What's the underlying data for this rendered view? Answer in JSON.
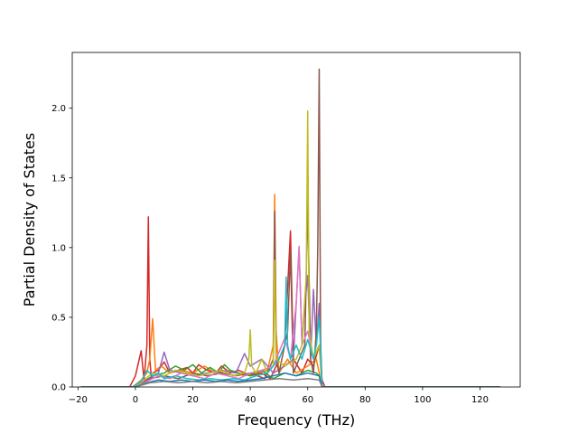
{
  "chart_data": {
    "type": "line",
    "title": "",
    "xlabel": "Frequency (THz)",
    "ylabel": "Partial Density of States",
    "xlim": [
      -22,
      134
    ],
    "ylim": [
      0,
      2.4
    ],
    "xticks": [
      -20,
      0,
      20,
      40,
      60,
      80,
      100,
      120
    ],
    "xtick_labels": [
      "−20",
      "0",
      "20",
      "40",
      "60",
      "80",
      "100",
      "120"
    ],
    "yticks": [
      0.0,
      0.5,
      1.0,
      1.5,
      2.0
    ],
    "ytick_labels": [
      "0.0",
      "0.5",
      "1.0",
      "1.5",
      "2.0"
    ],
    "grid": false,
    "legend": "none",
    "series": [
      {
        "color": "#d62728",
        "x": [
          -19,
          -2,
          0,
          2,
          3,
          4,
          4.5,
          5,
          5.5,
          6,
          8,
          10,
          12,
          15,
          18,
          20,
          22,
          25,
          28,
          30,
          33,
          36,
          40,
          44,
          47,
          49,
          52,
          54,
          55,
          58,
          60,
          62,
          64,
          65,
          66,
          70,
          127
        ],
        "y": [
          0,
          0,
          0.08,
          0.26,
          0.05,
          0.3,
          1.22,
          0.2,
          0.08,
          0.1,
          0.12,
          0.18,
          0.1,
          0.12,
          0.14,
          0.1,
          0.16,
          0.12,
          0.1,
          0.15,
          0.1,
          0.12,
          0.08,
          0.1,
          0.06,
          0.15,
          0.3,
          1.12,
          0.2,
          0.1,
          0.2,
          0.15,
          0.3,
          0.05,
          0,
          0,
          0
        ]
      },
      {
        "color": "#ff7f0e",
        "x": [
          -19,
          -1,
          2,
          4,
          5,
          6,
          6.5,
          7,
          9,
          12,
          16,
          20,
          24,
          28,
          33,
          38,
          42,
          46,
          48,
          48.5,
          49,
          50,
          53,
          56,
          60,
          63,
          64,
          65,
          127
        ],
        "y": [
          0,
          0,
          0.05,
          0.1,
          0.2,
          0.49,
          0.3,
          0.12,
          0.15,
          0.1,
          0.12,
          0.1,
          0.15,
          0.1,
          0.12,
          0.08,
          0.1,
          0.12,
          0.3,
          1.38,
          0.4,
          0.1,
          0.2,
          0.1,
          0.15,
          0.2,
          0.1,
          0,
          0
        ]
      },
      {
        "color": "#2ca02c",
        "x": [
          -19,
          0,
          3,
          6,
          10,
          14,
          17,
          20,
          23,
          26,
          29,
          31,
          33,
          36,
          40,
          44,
          48,
          52,
          56,
          60,
          63,
          64,
          65,
          127
        ],
        "y": [
          0,
          0,
          0.04,
          0.08,
          0.1,
          0.15,
          0.12,
          0.16,
          0.1,
          0.14,
          0.1,
          0.16,
          0.12,
          0.1,
          0.08,
          0.12,
          0.06,
          0.1,
          0.08,
          0.12,
          0.1,
          0.08,
          0,
          0
        ]
      },
      {
        "color": "#9467bd",
        "x": [
          -19,
          0,
          4,
          8,
          10,
          12,
          16,
          20,
          25,
          30,
          35,
          38,
          40,
          44,
          48,
          52,
          55,
          56,
          57,
          58,
          59,
          60,
          61,
          62,
          63,
          64,
          65,
          127
        ],
        "y": [
          0,
          0,
          0.05,
          0.1,
          0.25,
          0.12,
          0.1,
          0.08,
          0.1,
          0.12,
          0.1,
          0.24,
          0.15,
          0.2,
          0.1,
          0.15,
          0.2,
          0.6,
          1.0,
          0.3,
          0.6,
          0.8,
          0.2,
          0.7,
          0.3,
          0.6,
          0,
          0
        ]
      },
      {
        "color": "#8c564b",
        "x": [
          -19,
          0,
          5,
          10,
          15,
          20,
          25,
          30,
          35,
          40,
          45,
          48,
          48.5,
          49,
          50,
          53,
          54,
          55,
          57,
          59,
          60,
          61,
          62,
          63,
          63.5,
          64,
          64.5,
          65,
          127
        ],
        "y": [
          0,
          0,
          0.06,
          0.08,
          0.06,
          0.1,
          0.08,
          0.1,
          0.08,
          0.1,
          0.06,
          0.2,
          1.26,
          0.2,
          0.1,
          0.4,
          0.98,
          0.1,
          0.2,
          0.3,
          1.33,
          0.2,
          0.1,
          0.4,
          1.0,
          2.28,
          0.3,
          0,
          0
        ]
      },
      {
        "color": "#e377c2",
        "x": [
          -19,
          0,
          4,
          8,
          12,
          16,
          20,
          24,
          28,
          32,
          36,
          40,
          44,
          48,
          50,
          52,
          54,
          56,
          57,
          58,
          60,
          62,
          64,
          65,
          127
        ],
        "y": [
          0,
          0,
          0.04,
          0.08,
          0.06,
          0.1,
          0.08,
          0.06,
          0.1,
          0.08,
          0.06,
          0.1,
          0.12,
          0.15,
          0.25,
          0.35,
          0.2,
          0.6,
          1.01,
          0.3,
          0.4,
          0.2,
          0.3,
          0,
          0
        ]
      },
      {
        "color": "#bcbd22",
        "x": [
          -19,
          0,
          3,
          6,
          10,
          14,
          18,
          22,
          26,
          30,
          34,
          38,
          39.5,
          40,
          40.5,
          42,
          44,
          46,
          48,
          48.5,
          49,
          52,
          56,
          58,
          59.5,
          60,
          60.5,
          62,
          64,
          65,
          127
        ],
        "y": [
          0,
          0,
          0.05,
          0.1,
          0.08,
          0.12,
          0.1,
          0.08,
          0.1,
          0.12,
          0.08,
          0.1,
          0.2,
          0.41,
          0.15,
          0.1,
          0.2,
          0.1,
          0.15,
          0.91,
          0.2,
          0.15,
          0.2,
          0.3,
          0.8,
          1.98,
          0.4,
          0.2,
          0.3,
          0,
          0
        ]
      },
      {
        "color": "#17becf",
        "x": [
          -19,
          -1,
          2,
          4,
          6,
          8,
          10,
          14,
          18,
          22,
          26,
          30,
          34,
          38,
          42,
          46,
          50,
          52,
          52.5,
          53,
          54,
          56,
          58,
          60,
          62,
          63,
          64,
          65,
          127
        ],
        "y": [
          0,
          0,
          0.04,
          0.12,
          0.08,
          0.1,
          0.06,
          0.08,
          0.06,
          0.05,
          0.06,
          0.05,
          0.06,
          0.05,
          0.08,
          0.1,
          0.2,
          0.3,
          0.79,
          0.3,
          0.2,
          0.3,
          0.2,
          0.34,
          0.2,
          0.3,
          0.5,
          0,
          0
        ]
      },
      {
        "color": "#1f77b4",
        "x": [
          -19,
          0,
          4,
          8,
          12,
          16,
          20,
          24,
          28,
          32,
          36,
          40,
          44,
          48,
          52,
          56,
          60,
          64,
          65,
          127
        ],
        "y": [
          0,
          0,
          0.03,
          0.05,
          0.04,
          0.05,
          0.04,
          0.05,
          0.04,
          0.05,
          0.04,
          0.05,
          0.06,
          0.08,
          0.1,
          0.08,
          0.1,
          0.08,
          0,
          0
        ]
      },
      {
        "color": "#7f7f7f",
        "x": [
          -19,
          0,
          5,
          10,
          15,
          20,
          25,
          30,
          35,
          40,
          45,
          50,
          55,
          60,
          64,
          65,
          127
        ],
        "y": [
          0,
          0,
          0.03,
          0.04,
          0.03,
          0.04,
          0.03,
          0.04,
          0.03,
          0.04,
          0.05,
          0.06,
          0.05,
          0.06,
          0.05,
          0,
          0
        ]
      }
    ]
  }
}
